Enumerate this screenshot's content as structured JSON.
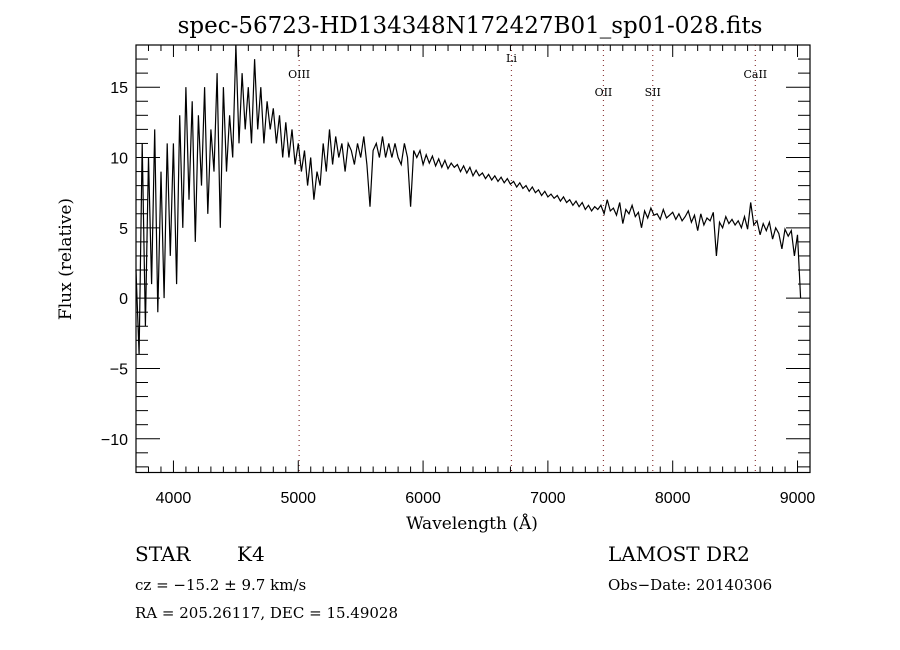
{
  "chart_data": {
    "type": "line",
    "title": "spec-56723-HD134348N172427B01_sp01-028.fits",
    "xlabel": "Wavelength (Å)",
    "ylabel": "Flux (relative)",
    "xlim": [
      3700,
      9100
    ],
    "ylim": [
      -12.4,
      18
    ],
    "x_ticks": [
      4000,
      5000,
      6000,
      7000,
      8000,
      9000
    ],
    "x_tick_labels": [
      "4000",
      "5000",
      "6000",
      "7000",
      "8000",
      "9000"
    ],
    "y_ticks": [
      -10,
      -5,
      0,
      5,
      10,
      15
    ],
    "y_tick_labels": [
      "−10",
      "−5",
      "0",
      "5",
      "10",
      "15"
    ],
    "grid": false,
    "lines": [
      {
        "label": "OIII",
        "x": 5007
      },
      {
        "label": "Li",
        "x": 6708
      },
      {
        "label": "OII",
        "x": 7445
      },
      {
        "label": "SII",
        "x": 7840
      },
      {
        "label": "CaII",
        "x": 8662
      }
    ],
    "series": [
      {
        "name": "flux",
        "x_start": 3700,
        "x_step": 25,
        "values": [
          2,
          -4,
          11,
          -2,
          10,
          1,
          12,
          -1,
          9,
          0,
          11,
          3,
          11,
          1,
          13,
          5,
          15,
          7,
          14,
          4,
          13,
          8,
          15,
          6,
          12,
          9,
          16,
          5,
          15,
          9,
          13,
          10,
          18,
          11,
          16,
          12,
          15,
          11,
          17,
          12,
          15,
          11,
          14,
          12,
          13.5,
          11,
          13,
          10,
          12.5,
          10,
          12,
          9.5,
          11,
          9,
          10.5,
          8,
          10,
          7,
          9,
          8,
          11,
          9,
          12,
          9.5,
          11.5,
          10,
          11,
          9,
          11,
          10.5,
          9.5,
          11,
          10,
          11.5,
          9.5,
          6.5,
          10.5,
          11,
          10,
          11.5,
          10,
          11,
          10,
          11,
          10,
          9.5,
          11,
          10,
          6.5,
          10.5,
          10,
          10.5,
          9.5,
          10.2,
          9.6,
          10.1,
          9.4,
          9.9,
          9.3,
          9.8,
          9.2,
          9.6,
          9.3,
          9.5,
          9.0,
          9.4,
          8.9,
          9.3,
          8.7,
          9.1,
          8.7,
          8.9,
          8.5,
          8.8,
          8.4,
          8.7,
          8.3,
          8.6,
          8.2,
          8.5,
          8.1,
          8.3,
          7.9,
          8.2,
          7.8,
          8.0,
          7.6,
          7.9,
          7.5,
          7.7,
          7.3,
          7.6,
          7.2,
          7.4,
          7.1,
          7.3,
          6.9,
          7.2,
          6.8,
          7.0,
          6.6,
          6.9,
          6.5,
          6.8,
          6.3,
          6.6,
          6.2,
          6.5,
          6.3,
          6.6,
          6.0,
          7.0,
          6.2,
          6.4,
          5.9,
          6.8,
          5.3,
          6.3,
          6.0,
          6.6,
          5.8,
          6.1,
          5.0,
          6.2,
          5.7,
          6.4,
          5.9,
          6.0,
          5.6,
          6.3,
          5.7,
          5.9,
          6.1,
          5.6,
          6.0,
          5.5,
          5.8,
          6.2,
          5.4,
          5.9,
          4.8,
          6.0,
          5.2,
          5.7,
          5.5,
          6.1,
          3.0,
          5.4,
          5.0,
          5.8,
          5.3,
          5.6,
          5.2,
          5.5,
          5.0,
          5.8,
          4.9,
          6.8,
          5.2,
          5.5,
          4.5,
          5.3,
          4.8,
          5.4,
          4.2,
          5.0,
          4.6,
          3.5,
          4.9,
          4.4,
          4.8,
          3.0,
          4.5,
          0
        ]
      }
    ]
  },
  "footer": {
    "object_class": "STAR",
    "subclass": "K4",
    "survey": "LAMOST DR2",
    "cz": "cz = −15.2 ± 9.7 km/s",
    "obs_date": "Obs−Date: 20140306",
    "coords": "RA = 205.26117, DEC =  15.49028"
  }
}
